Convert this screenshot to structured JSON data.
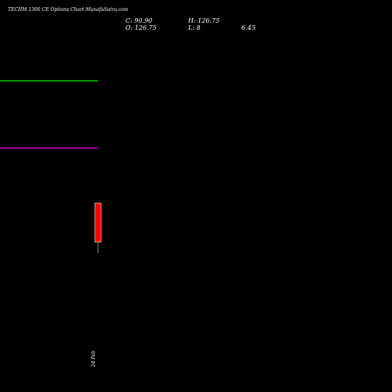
{
  "title": "TECHM 1300 CE Options Chart MunafaSutra.com",
  "ohlc": {
    "close_label": "C: 90.90",
    "high_label": "H: 126.75",
    "open_label": "O: 126.75",
    "low_label": "L: 8",
    "extra_value": "6.45"
  },
  "colors": {
    "background": "#000000",
    "text": "#ffffff",
    "green_line": "#00cc00",
    "purple_line": "#cc00cc",
    "candle_down": "#ff0000",
    "wick": "#888888"
  },
  "chart_data": {
    "type": "candlestick",
    "ylim": [
      8,
      126.75
    ],
    "candles": [
      {
        "date": "24 Feb",
        "open": 126.75,
        "high": 126.75,
        "low": 8,
        "close": 90.9
      }
    ],
    "reference_lines": [
      {
        "color": "green"
      },
      {
        "color": "purple"
      }
    ],
    "date_label": "24 Feb"
  }
}
